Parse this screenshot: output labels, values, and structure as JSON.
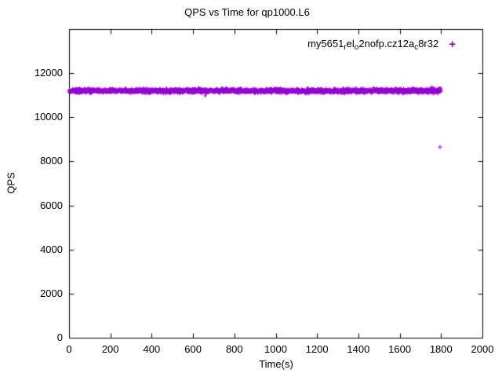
{
  "page": {
    "background": "#ffffff",
    "text_color": "#000000"
  },
  "chart_data": {
    "type": "scatter",
    "title": "QPS vs Time for qp1000.L6",
    "xlabel": "Time(s)",
    "ylabel": "QPS",
    "xlim": [
      0,
      2000
    ],
    "ylim": [
      0,
      14000
    ],
    "xticks": [
      0,
      200,
      400,
      600,
      800,
      1000,
      1200,
      1400,
      1600,
      1800,
      2000
    ],
    "yticks": [
      0,
      2000,
      4000,
      6000,
      8000,
      10000,
      12000
    ],
    "grid": false,
    "legend_position": "top-right-inside",
    "series": [
      {
        "name": "my5651_rel_o2nofp.cz12a_c8r32",
        "label_parts": [
          {
            "text": "my5651",
            "sub": false
          },
          {
            "text": "r",
            "sub": true
          },
          {
            "text": "el",
            "sub": false
          },
          {
            "text": "o",
            "sub": true
          },
          {
            "text": "2nofp.cz12a",
            "sub": false
          },
          {
            "text": "c",
            "sub": true
          },
          {
            "text": "8r32",
            "sub": false
          }
        ],
        "marker": "plus",
        "marker_glyph": "+",
        "color": "#9400d3",
        "band": {
          "x_start": 0,
          "x_end": 1800,
          "y_mean": 11200,
          "y_spread": 90,
          "points": 2600
        },
        "outliers": [
          [
            1795,
            8650
          ]
        ]
      }
    ]
  }
}
